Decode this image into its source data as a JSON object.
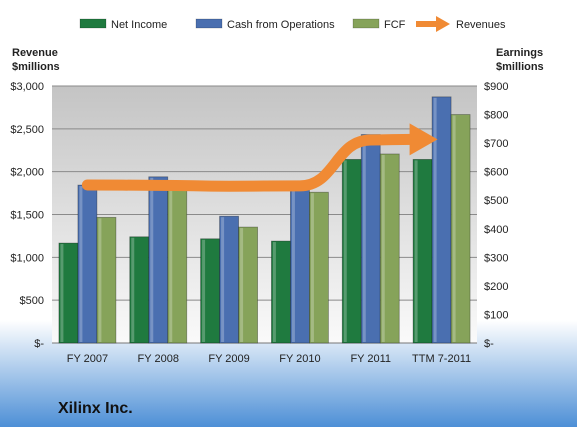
{
  "chart_data": {
    "type": "bar",
    "company": "Xilinx Inc.",
    "categories": [
      "FY 2007",
      "FY 2008",
      "FY 2009",
      "FY 2010",
      "FY 2011",
      "TTM 7-2011"
    ],
    "series": [
      {
        "name": "Net Income",
        "axis": "right",
        "color": "#1f7a3f",
        "values": [
          350,
          372,
          365,
          357,
          643,
          643
        ]
      },
      {
        "name": "Cash from Operations",
        "axis": "right",
        "color": "#4a6fb0",
        "values": [
          553,
          582,
          444,
          557,
          730,
          862
        ]
      },
      {
        "name": "FCF",
        "axis": "right",
        "color": "#86a35a",
        "values": [
          440,
          537,
          406,
          528,
          662,
          800
        ]
      }
    ],
    "line_series": {
      "name": "Revenues",
      "axis": "left",
      "color": "#f08a34",
      "values": [
        1845,
        1840,
        1830,
        1834,
        2370,
        2400
      ]
    },
    "left_axis": {
      "title_line1": "Revenue",
      "title_line2": "$millions",
      "ylim": [
        0,
        3000
      ],
      "ticks": [
        "$-",
        "$500",
        "$1,000",
        "$1,500",
        "$2,000",
        "$2,500",
        "$3,000"
      ]
    },
    "right_axis": {
      "title_line1": "Earnings",
      "title_line2": "$millions",
      "ylim": [
        0,
        900
      ],
      "ticks": [
        "$-",
        "$100",
        "$200",
        "$300",
        "$400",
        "$500",
        "$600",
        "$700",
        "$800",
        "$900"
      ]
    },
    "legend": {
      "position": "top"
    },
    "grid": true
  }
}
